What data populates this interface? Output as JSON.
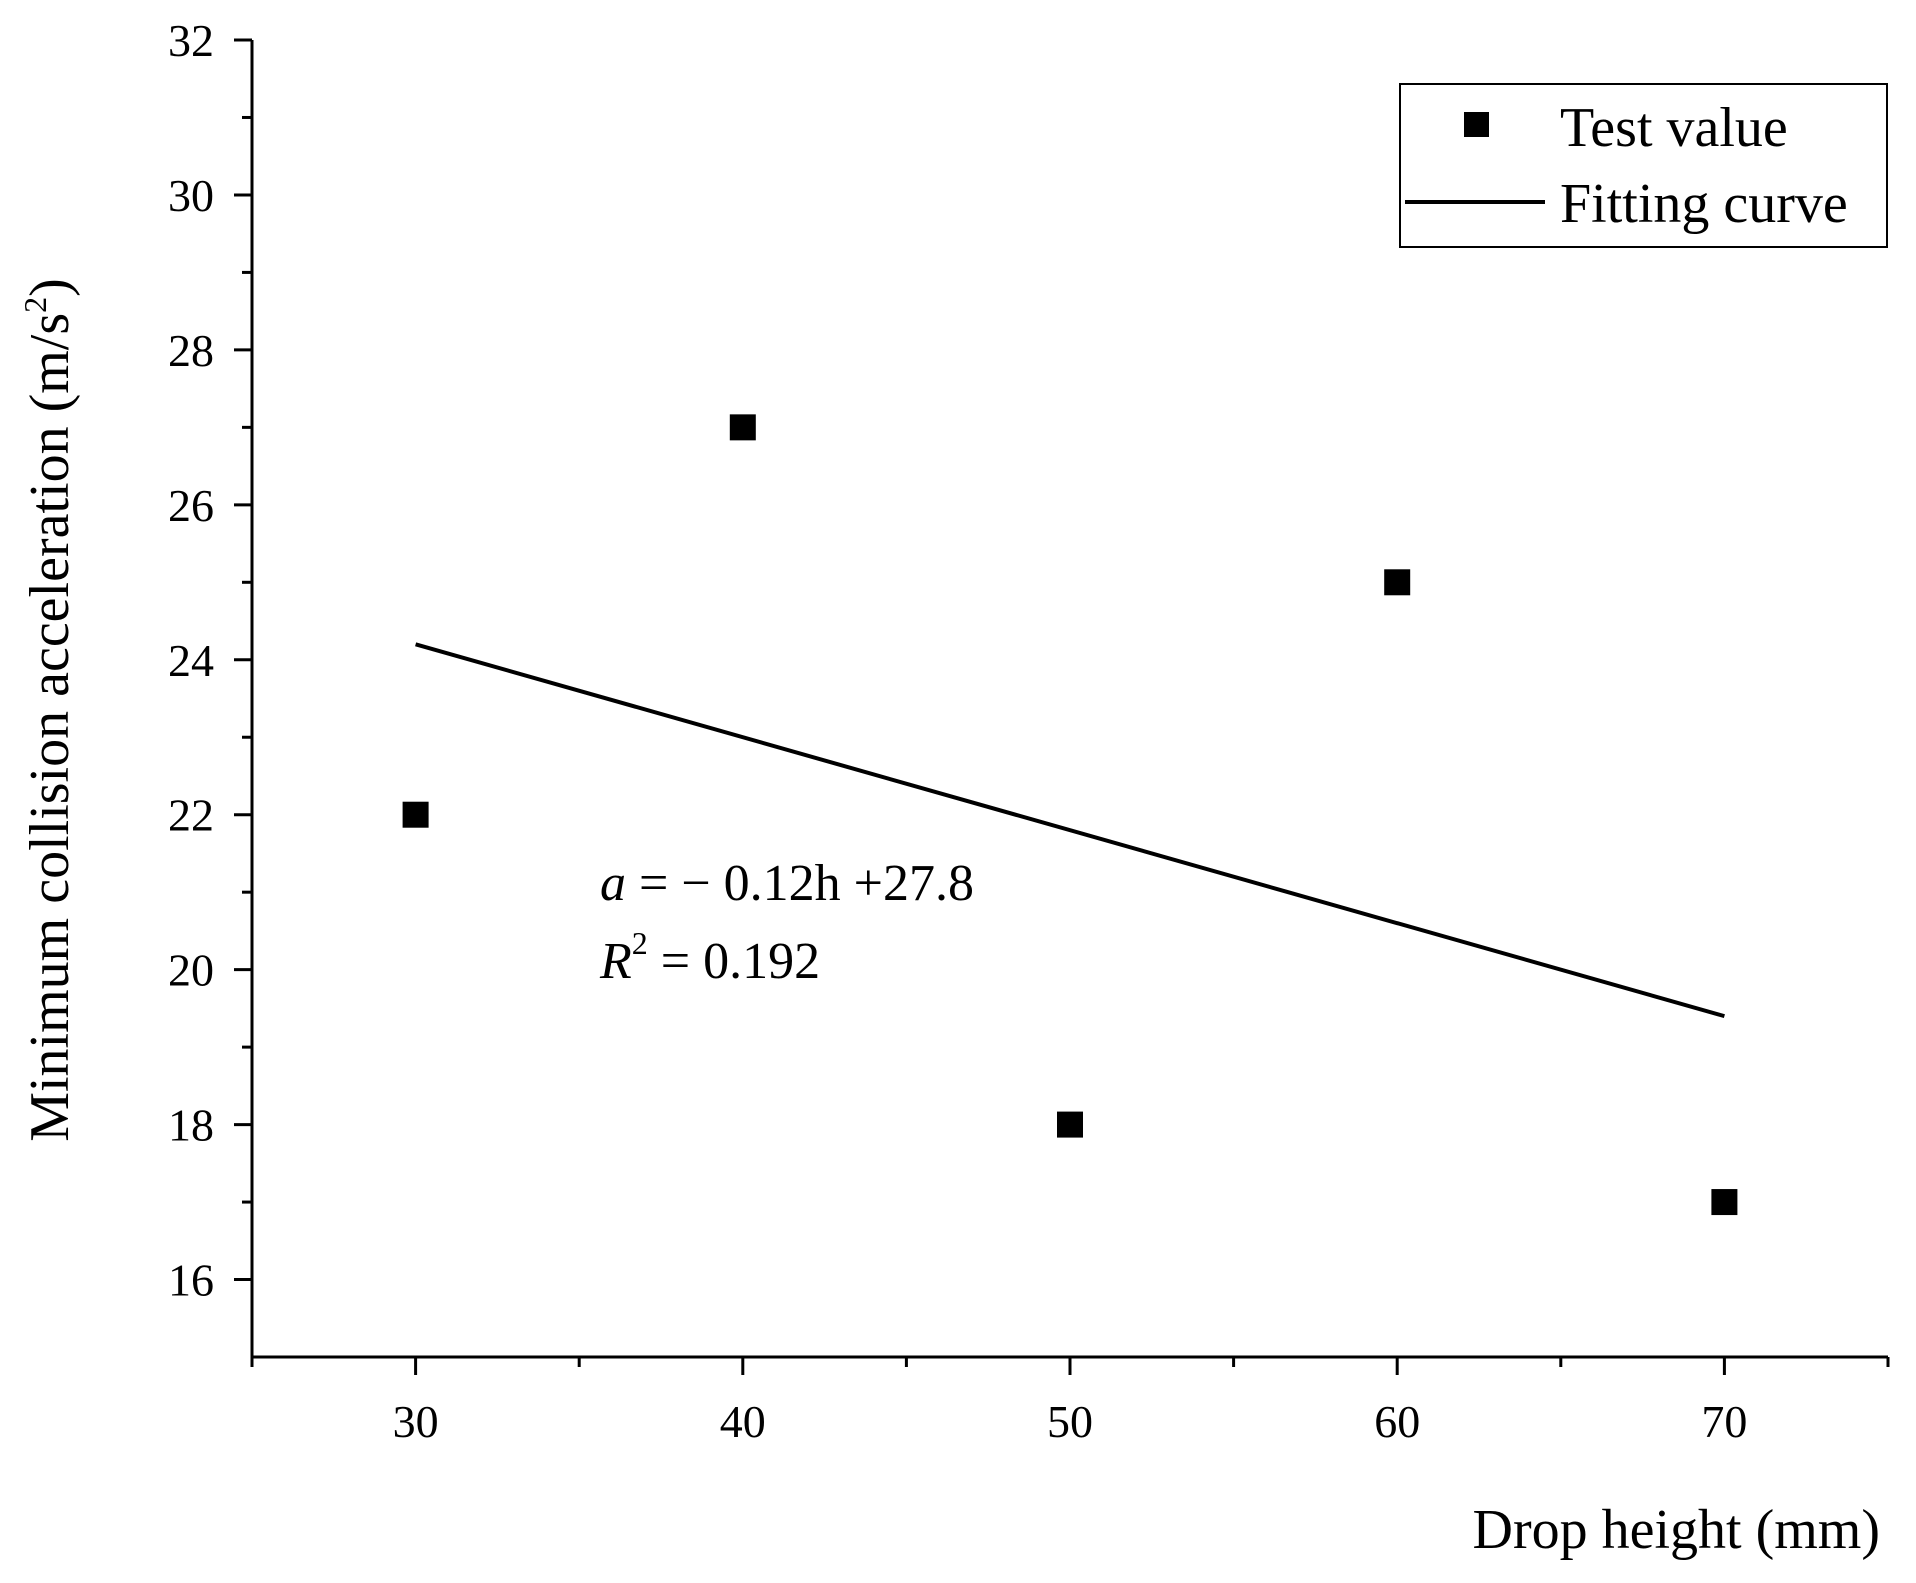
{
  "chart_data": {
    "type": "scatter",
    "xlabel": "Drop height (mm)",
    "ylabel_main": "Minimum collision acceleration (m/s",
    "ylabel_sup": "2",
    "ylabel_close": ")",
    "xlim": [
      25,
      75
    ],
    "ylim": [
      15,
      32
    ],
    "x_ticks": [
      30,
      40,
      50,
      60,
      70
    ],
    "x_minor_ticks": [
      25,
      35,
      45,
      55,
      65,
      75
    ],
    "y_ticks": [
      16,
      18,
      20,
      22,
      24,
      26,
      28,
      30,
      32
    ],
    "y_minor_ticks": [
      17,
      19,
      21,
      23,
      25,
      27,
      29,
      31
    ],
    "series": [
      {
        "name": "Test value",
        "kind": "scatter",
        "x": [
          30,
          40,
          50,
          60,
          70
        ],
        "y": [
          22,
          27,
          18,
          25,
          17
        ]
      },
      {
        "name": "Fitting curve",
        "kind": "line",
        "x": [
          30,
          70
        ],
        "y": [
          24.2,
          19.4
        ]
      }
    ],
    "legend": {
      "position": "top-right",
      "items": [
        "Test value",
        "Fitting curve"
      ]
    },
    "annotation": {
      "eq_var": "a",
      "eq_rest": " = − 0.12h +27.8",
      "r2_var": "R",
      "r2_sup": "2",
      "r2_rest": " = 0.192"
    },
    "colors": {
      "marker": "#000000",
      "line": "#000000",
      "axis": "#000000"
    }
  }
}
